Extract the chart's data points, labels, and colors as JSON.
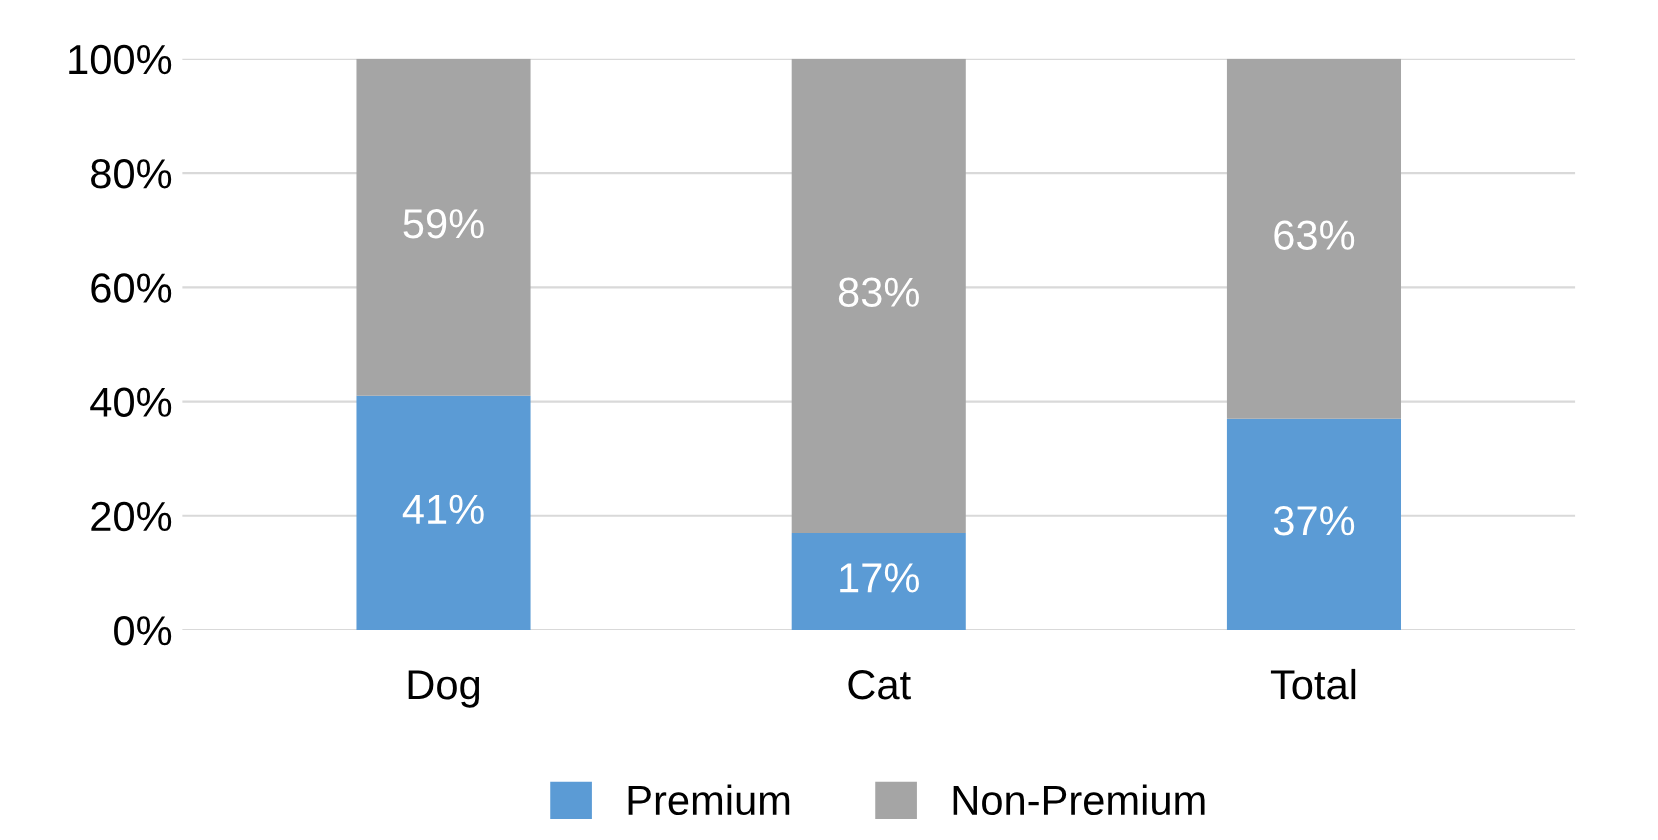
{
  "chart_data": {
    "type": "bar",
    "stacked": true,
    "categories": [
      "Dog",
      "Cat",
      "Total"
    ],
    "series": [
      {
        "name": "Premium",
        "color": "#5b9bd5",
        "values": [
          41,
          17,
          37
        ],
        "value_labels": [
          "41%",
          "17%",
          "37%"
        ]
      },
      {
        "name": "Non-Premium",
        "color": "#a5a5a5",
        "values": [
          59,
          83,
          63
        ],
        "value_labels": [
          "59%",
          "83%",
          "63%"
        ]
      }
    ],
    "ylim": [
      0,
      100
    ],
    "yticks": [
      {
        "value": 0,
        "label": "0%"
      },
      {
        "value": 20,
        "label": "20%"
      },
      {
        "value": 40,
        "label": "40%"
      },
      {
        "value": 60,
        "label": "60%"
      },
      {
        "value": 80,
        "label": "80%"
      },
      {
        "value": 100,
        "label": "100%"
      }
    ],
    "grid": "y",
    "legend": "bottom"
  }
}
